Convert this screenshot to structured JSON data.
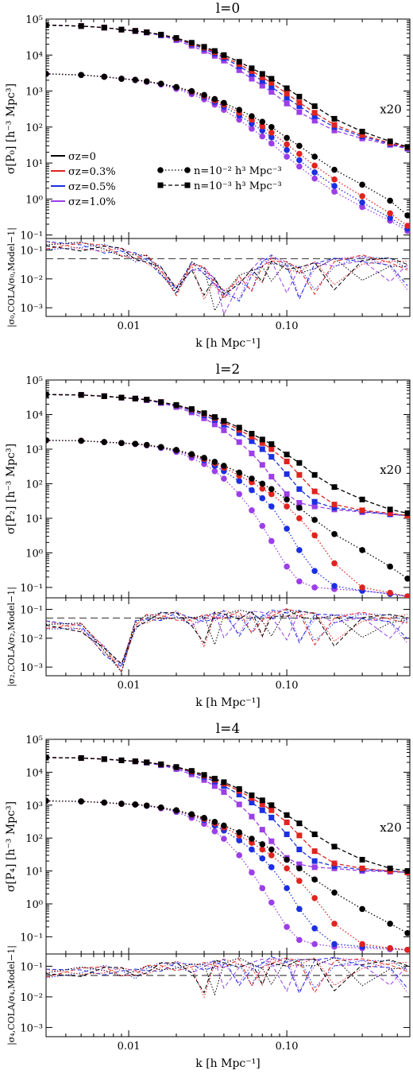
{
  "figure": {
    "panels": [
      {
        "title": "l=0",
        "ylabel": "σ[P₀] [h⁻³ Mpc³]",
        "rlabel": "|σ₀,COLA/σ₀,Model−1|",
        "xlabel": "k [h Mpc⁻¹]",
        "annotation": "x20"
      },
      {
        "title": "l=2",
        "ylabel": "σ[P₂] [h⁻³ Mpc³]",
        "rlabel": "|σ₂,COLA/σ₂,Model−1|",
        "xlabel": "k [h Mpc⁻¹]",
        "annotation": "x20"
      },
      {
        "title": "l=4",
        "ylabel": "σ[P₄] [h⁻³ Mpc³]",
        "rlabel": "|σ₄,COLA/σ₄,Model−1|",
        "xlabel": "k [h Mpc⁻¹]",
        "annotation": "x20"
      }
    ],
    "legend": {
      "sigma": [
        {
          "label": "σz=0",
          "color": "#000000"
        },
        {
          "label": "σz=0.3%",
          "color": "#e0231f"
        },
        {
          "label": "σz=0.5%",
          "color": "#1c2fe0"
        },
        {
          "label": "σz=1.0%",
          "color": "#9b3fe6"
        }
      ],
      "density": [
        {
          "label": "n=10⁻² h³ Mpc⁻³",
          "marker": "circle",
          "dash": "dotted"
        },
        {
          "label": "n=10⁻³ h³ Mpc⁻³",
          "marker": "square",
          "dash": "dashed"
        }
      ]
    },
    "x_ticks": [
      "0.01",
      "0.10"
    ],
    "main_y_ticks": [
      "10⁻¹",
      "10⁰",
      "10¹",
      "10²",
      "10³",
      "10⁴",
      "10⁵"
    ],
    "ratio_y_ticks": [
      "10⁻³",
      "10⁻²",
      "10⁻¹"
    ]
  },
  "chart_data": [
    {
      "type": "line",
      "title": "l=0",
      "xlabel": "k [h Mpc⁻¹]",
      "ylabel": "σ[P₀] [h⁻³ Mpc³]",
      "xscale": "log",
      "yscale": "log",
      "xlim": [
        0.003,
        0.6
      ],
      "ylim": [
        0.08,
        100000
      ],
      "k": [
        0.003,
        0.005,
        0.007,
        0.009,
        0.011,
        0.013,
        0.016,
        0.02,
        0.025,
        0.03,
        0.035,
        0.04,
        0.05,
        0.06,
        0.07,
        0.08,
        0.1,
        0.12,
        0.15,
        0.2,
        0.3,
        0.45,
        0.58
      ],
      "n_high": {
        "sigma_0": [
          3000,
          2800,
          2500,
          2200,
          2050,
          1850,
          1600,
          1300,
          1000,
          780,
          600,
          470,
          300,
          200,
          140,
          100,
          50,
          30,
          15,
          6.5,
          2.5,
          0.9,
          0.35
        ],
        "sigma_0.3": [
          3000,
          2800,
          2500,
          2200,
          2050,
          1850,
          1600,
          1280,
          960,
          730,
          550,
          420,
          250,
          160,
          105,
          70,
          33,
          18,
          8.5,
          3.5,
          1.2,
          0.4,
          0.18
        ],
        "sigma_0.5": [
          3000,
          2800,
          2500,
          2200,
          2050,
          1850,
          1580,
          1250,
          920,
          680,
          500,
          370,
          210,
          125,
          80,
          52,
          23,
          12,
          5.5,
          2.3,
          0.8,
          0.3,
          0.15
        ],
        "sigma_1.0": [
          3000,
          2800,
          2500,
          2200,
          2000,
          1800,
          1520,
          1150,
          820,
          590,
          420,
          300,
          160,
          90,
          55,
          35,
          15,
          8,
          3.7,
          1.6,
          0.6,
          0.25,
          0.13
        ]
      },
      "n_low_x20": {
        "sigma_0": [
          68000,
          64000,
          58000,
          51000,
          47000,
          43000,
          37000,
          30000,
          22000,
          17000,
          13000,
          10000,
          6500,
          4300,
          3000,
          2200,
          1200,
          700,
          380,
          170,
          75,
          40,
          28
        ],
        "sigma_0.3": [
          68000,
          64000,
          58000,
          51000,
          47000,
          43000,
          37000,
          29000,
          21000,
          16000,
          12000,
          9000,
          5600,
          3600,
          2400,
          1700,
          850,
          480,
          250,
          115,
          60,
          36,
          27
        ],
        "sigma_0.5": [
          68000,
          64000,
          58000,
          51000,
          47000,
          43000,
          36000,
          28000,
          20000,
          15000,
          11000,
          8300,
          4900,
          3000,
          1900,
          1300,
          650,
          380,
          200,
          100,
          55,
          34,
          26
        ],
        "sigma_1.0": [
          68000,
          64000,
          58000,
          51000,
          46000,
          42000,
          35000,
          26000,
          18000,
          13000,
          9500,
          7000,
          3800,
          2200,
          1400,
          950,
          450,
          260,
          150,
          80,
          48,
          32,
          25
        ]
      }
    },
    {
      "type": "line",
      "title": "l=2",
      "xlabel": "k [h Mpc⁻¹]",
      "ylabel": "σ[P₂] [h⁻³ Mpc³]",
      "xscale": "log",
      "yscale": "log",
      "xlim": [
        0.003,
        0.6
      ],
      "ylim": [
        0.05,
        100000
      ],
      "k": [
        0.003,
        0.005,
        0.007,
        0.009,
        0.011,
        0.013,
        0.016,
        0.02,
        0.025,
        0.03,
        0.035,
        0.04,
        0.05,
        0.06,
        0.07,
        0.08,
        0.1,
        0.12,
        0.15,
        0.2,
        0.3,
        0.45,
        0.58
      ],
      "n_high": {
        "sigma_0": [
          1800,
          1750,
          1600,
          1500,
          1420,
          1320,
          1150,
          950,
          720,
          560,
          430,
          330,
          210,
          140,
          100,
          70,
          35,
          20,
          9,
          3.5,
          1.2,
          0.4,
          0.18
        ],
        "sigma_0.3": [
          1800,
          1750,
          1600,
          1500,
          1420,
          1320,
          1140,
          930,
          690,
          520,
          390,
          290,
          170,
          110,
          72,
          50,
          22,
          10,
          3.2,
          0.5,
          0.1,
          0.07,
          0.055
        ],
        "sigma_0.5": [
          1800,
          1750,
          1600,
          1500,
          1420,
          1310,
          1120,
          900,
          650,
          470,
          330,
          230,
          120,
          65,
          38,
          22,
          5,
          1.2,
          0.3,
          0.11,
          0.08,
          0.065,
          0.055
        ],
        "sigma_1.0": [
          1800,
          1750,
          1600,
          1500,
          1400,
          1290,
          1080,
          830,
          560,
          370,
          230,
          140,
          50,
          17,
          6,
          2.2,
          0.4,
          0.15,
          0.1,
          0.09,
          0.08,
          0.065,
          0.055
        ]
      },
      "n_low_x20": {
        "sigma_0": [
          38000,
          37000,
          34000,
          31000,
          29000,
          27000,
          23000,
          19000,
          14500,
          11000,
          8500,
          6600,
          4200,
          2800,
          1900,
          1400,
          700,
          400,
          180,
          80,
          35,
          18,
          14
        ],
        "sigma_0.3": [
          38000,
          37000,
          34000,
          31000,
          29000,
          27000,
          23000,
          18500,
          14000,
          10500,
          8000,
          6000,
          3600,
          2300,
          1500,
          1000,
          440,
          180,
          60,
          25,
          17,
          14,
          12
        ],
        "sigma_0.5": [
          38000,
          37000,
          34000,
          31000,
          29000,
          27000,
          22500,
          18000,
          13000,
          9500,
          7000,
          5100,
          2900,
          1700,
          1000,
          600,
          190,
          70,
          30,
          20,
          16,
          13,
          12
        ],
        "sigma_1.0": [
          38000,
          37000,
          34000,
          31000,
          29000,
          26000,
          21500,
          16500,
          11500,
          7800,
          5200,
          3500,
          1600,
          750,
          350,
          160,
          50,
          28,
          22,
          18,
          15,
          13,
          12
        ]
      }
    },
    {
      "type": "line",
      "title": "l=4",
      "xlabel": "k [h Mpc⁻¹]",
      "ylabel": "σ[P₄] [h⁻³ Mpc³]",
      "xscale": "log",
      "yscale": "log",
      "xlim": [
        0.003,
        0.6
      ],
      "ylim": [
        0.03,
        100000
      ],
      "k": [
        0.003,
        0.005,
        0.007,
        0.009,
        0.011,
        0.013,
        0.016,
        0.02,
        0.025,
        0.03,
        0.035,
        0.04,
        0.05,
        0.06,
        0.07,
        0.08,
        0.1,
        0.12,
        0.15,
        0.2,
        0.3,
        0.45,
        0.58
      ],
      "n_high": {
        "sigma_0": [
          1350,
          1300,
          1200,
          1100,
          1050,
          970,
          850,
          700,
          530,
          410,
          310,
          240,
          150,
          95,
          65,
          45,
          22,
          12,
          5.5,
          2.2,
          0.7,
          0.25,
          0.13
        ],
        "sigma_0.3": [
          1350,
          1300,
          1200,
          1100,
          1050,
          970,
          840,
          690,
          510,
          380,
          280,
          210,
          120,
          72,
          45,
          30,
          12,
          5,
          1.5,
          0.25,
          0.06,
          0.045,
          0.04
        ],
        "sigma_0.5": [
          1350,
          1300,
          1200,
          1100,
          1050,
          960,
          830,
          670,
          480,
          350,
          240,
          170,
          85,
          45,
          24,
          13,
          3,
          0.7,
          0.18,
          0.06,
          0.05,
          0.045,
          0.04
        ],
        "sigma_1.0": [
          1350,
          1300,
          1200,
          1100,
          1040,
          950,
          800,
          620,
          410,
          270,
          160,
          95,
          30,
          9,
          3,
          1.1,
          0.2,
          0.08,
          0.06,
          0.05,
          0.045,
          0.042,
          0.04
        ]
      },
      "n_low_x20": {
        "sigma_0": [
          28000,
          27000,
          25000,
          23000,
          21500,
          20000,
          17500,
          14500,
          11000,
          8300,
          6400,
          5000,
          3100,
          2000,
          1400,
          1000,
          500,
          280,
          130,
          55,
          22,
          12,
          10
        ],
        "sigma_0.3": [
          28000,
          27000,
          25000,
          23000,
          21500,
          20000,
          17300,
          14200,
          10500,
          7900,
          5900,
          4500,
          2700,
          1650,
          1050,
          700,
          300,
          120,
          40,
          17,
          12,
          10,
          9
        ],
        "sigma_0.5": [
          28000,
          27000,
          25000,
          23000,
          21500,
          19800,
          17000,
          13700,
          9900,
          7200,
          5200,
          3800,
          2100,
          1200,
          700,
          420,
          130,
          45,
          20,
          14,
          11,
          10,
          9
        ],
        "sigma_1.0": [
          28000,
          27000,
          25000,
          23000,
          21300,
          19500,
          16300,
          12500,
          8600,
          5800,
          3800,
          2500,
          1050,
          450,
          180,
          80,
          25,
          16,
          13,
          12,
          10,
          9.5,
          9
        ]
      }
    }
  ]
}
